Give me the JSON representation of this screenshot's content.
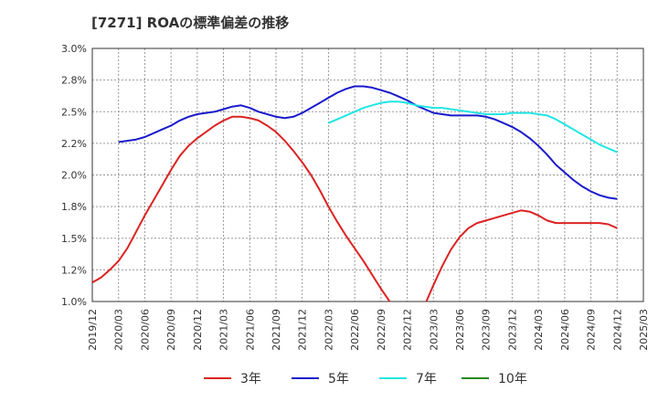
{
  "chart_data": {
    "type": "line",
    "title": "[7271]  ROAの標準偏差の推移",
    "xlabel": "",
    "ylabel": "",
    "ylim": [
      1.0,
      3.0
    ],
    "y_ticks": [
      "1.0%",
      "1.2%",
      "1.5%",
      "1.8%",
      "2.0%",
      "2.2%",
      "2.5%",
      "2.8%",
      "3.0%"
    ],
    "x_ticks": [
      "2019/12",
      "2020/03",
      "2020/06",
      "2020/09",
      "2020/12",
      "2021/03",
      "2021/06",
      "2021/09",
      "2021/12",
      "2022/03",
      "2022/06",
      "2022/09",
      "2022/12",
      "2023/03",
      "2023/06",
      "2023/09",
      "2023/12",
      "2024/03",
      "2024/06",
      "2024/09",
      "2024/12",
      "2025/03"
    ],
    "grid": true,
    "legend_position": "bottom",
    "series": [
      {
        "name": "3年",
        "color": "#dd2222",
        "values": [
          [
            "2019/12",
            1.15
          ],
          [
            "2020/01",
            1.19
          ],
          [
            "2020/02",
            1.25
          ],
          [
            "2020/03",
            1.32
          ],
          [
            "2020/04",
            1.42
          ],
          [
            "2020/05",
            1.55
          ],
          [
            "2020/06",
            1.68
          ],
          [
            "2020/07",
            1.8
          ],
          [
            "2020/08",
            1.92
          ],
          [
            "2020/09",
            2.04
          ],
          [
            "2020/10",
            2.15
          ],
          [
            "2020/11",
            2.23
          ],
          [
            "2020/12",
            2.29
          ],
          [
            "2021/01",
            2.34
          ],
          [
            "2021/02",
            2.39
          ],
          [
            "2021/03",
            2.43
          ],
          [
            "2021/04",
            2.46
          ],
          [
            "2021/05",
            2.46
          ],
          [
            "2021/06",
            2.45
          ],
          [
            "2021/07",
            2.43
          ],
          [
            "2021/08",
            2.39
          ],
          [
            "2021/09",
            2.34
          ],
          [
            "2021/10",
            2.27
          ],
          [
            "2021/11",
            2.19
          ],
          [
            "2021/12",
            2.1
          ],
          [
            "2022/01",
            2.0
          ],
          [
            "2022/02",
            1.88
          ],
          [
            "2022/03",
            1.75
          ],
          [
            "2022/04",
            1.63
          ],
          [
            "2022/05",
            1.52
          ],
          [
            "2022/06",
            1.42
          ],
          [
            "2022/07",
            1.32
          ],
          [
            "2022/08",
            1.21
          ],
          [
            "2022/09",
            1.1
          ],
          [
            "2022/10",
            1.0
          ],
          [
            "2022/11",
            0.92
          ],
          [
            "2022/12",
            0.88
          ],
          [
            "2023/01",
            0.89
          ],
          [
            "2023/02",
            0.97
          ],
          [
            "2023/03",
            1.13
          ],
          [
            "2023/04",
            1.28
          ],
          [
            "2023/05",
            1.41
          ],
          [
            "2023/06",
            1.51
          ],
          [
            "2023/07",
            1.58
          ],
          [
            "2023/08",
            1.62
          ],
          [
            "2023/09",
            1.64
          ],
          [
            "2023/10",
            1.66
          ],
          [
            "2023/11",
            1.68
          ],
          [
            "2023/12",
            1.7
          ],
          [
            "2024/01",
            1.72
          ],
          [
            "2024/02",
            1.71
          ],
          [
            "2024/03",
            1.68
          ],
          [
            "2024/04",
            1.64
          ],
          [
            "2024/05",
            1.62
          ],
          [
            "2024/06",
            1.62
          ],
          [
            "2024/07",
            1.62
          ],
          [
            "2024/08",
            1.62
          ],
          [
            "2024/09",
            1.62
          ],
          [
            "2024/10",
            1.62
          ],
          [
            "2024/11",
            1.61
          ],
          [
            "2024/12",
            1.58
          ]
        ]
      },
      {
        "name": "5年",
        "color": "#1a1acc",
        "values": [
          [
            "2020/03",
            2.26
          ],
          [
            "2020/04",
            2.27
          ],
          [
            "2020/05",
            2.28
          ],
          [
            "2020/06",
            2.3
          ],
          [
            "2020/07",
            2.33
          ],
          [
            "2020/08",
            2.36
          ],
          [
            "2020/09",
            2.39
          ],
          [
            "2020/10",
            2.43
          ],
          [
            "2020/11",
            2.46
          ],
          [
            "2020/12",
            2.48
          ],
          [
            "2021/01",
            2.49
          ],
          [
            "2021/02",
            2.5
          ],
          [
            "2021/03",
            2.52
          ],
          [
            "2021/04",
            2.54
          ],
          [
            "2021/05",
            2.55
          ],
          [
            "2021/06",
            2.53
          ],
          [
            "2021/07",
            2.5
          ],
          [
            "2021/08",
            2.48
          ],
          [
            "2021/09",
            2.46
          ],
          [
            "2021/10",
            2.45
          ],
          [
            "2021/11",
            2.46
          ],
          [
            "2021/12",
            2.49
          ],
          [
            "2022/01",
            2.53
          ],
          [
            "2022/02",
            2.57
          ],
          [
            "2022/03",
            2.61
          ],
          [
            "2022/04",
            2.65
          ],
          [
            "2022/05",
            2.68
          ],
          [
            "2022/06",
            2.7
          ],
          [
            "2022/07",
            2.7
          ],
          [
            "2022/08",
            2.69
          ],
          [
            "2022/09",
            2.67
          ],
          [
            "2022/10",
            2.65
          ],
          [
            "2022/11",
            2.62
          ],
          [
            "2022/12",
            2.59
          ],
          [
            "2023/01",
            2.55
          ],
          [
            "2023/02",
            2.52
          ],
          [
            "2023/03",
            2.49
          ],
          [
            "2023/04",
            2.48
          ],
          [
            "2023/05",
            2.47
          ],
          [
            "2023/06",
            2.47
          ],
          [
            "2023/07",
            2.47
          ],
          [
            "2023/08",
            2.47
          ],
          [
            "2023/09",
            2.46
          ],
          [
            "2023/10",
            2.44
          ],
          [
            "2023/11",
            2.41
          ],
          [
            "2023/12",
            2.38
          ],
          [
            "2024/01",
            2.34
          ],
          [
            "2024/02",
            2.29
          ],
          [
            "2024/03",
            2.23
          ],
          [
            "2024/04",
            2.16
          ],
          [
            "2024/05",
            2.08
          ],
          [
            "2024/06",
            2.02
          ],
          [
            "2024/07",
            1.96
          ],
          [
            "2024/08",
            1.91
          ],
          [
            "2024/09",
            1.87
          ],
          [
            "2024/10",
            1.84
          ],
          [
            "2024/11",
            1.82
          ],
          [
            "2024/12",
            1.81
          ]
        ]
      },
      {
        "name": "7年",
        "color": "#22e5e5",
        "values": [
          [
            "2022/03",
            2.41
          ],
          [
            "2022/04",
            2.44
          ],
          [
            "2022/05",
            2.47
          ],
          [
            "2022/06",
            2.5
          ],
          [
            "2022/07",
            2.53
          ],
          [
            "2022/08",
            2.55
          ],
          [
            "2022/09",
            2.57
          ],
          [
            "2022/10",
            2.58
          ],
          [
            "2022/11",
            2.58
          ],
          [
            "2022/12",
            2.57
          ],
          [
            "2023/01",
            2.55
          ],
          [
            "2023/02",
            2.54
          ],
          [
            "2023/03",
            2.53
          ],
          [
            "2023/04",
            2.53
          ],
          [
            "2023/05",
            2.52
          ],
          [
            "2023/06",
            2.51
          ],
          [
            "2023/07",
            2.5
          ],
          [
            "2023/08",
            2.49
          ],
          [
            "2023/09",
            2.48
          ],
          [
            "2023/10",
            2.48
          ],
          [
            "2023/11",
            2.48
          ],
          [
            "2023/12",
            2.49
          ],
          [
            "2024/01",
            2.49
          ],
          [
            "2024/02",
            2.49
          ],
          [
            "2024/03",
            2.48
          ],
          [
            "2024/04",
            2.47
          ],
          [
            "2024/05",
            2.44
          ],
          [
            "2024/06",
            2.4
          ],
          [
            "2024/07",
            2.36
          ],
          [
            "2024/08",
            2.32
          ],
          [
            "2024/09",
            2.28
          ],
          [
            "2024/10",
            2.24
          ],
          [
            "2024/11",
            2.21
          ],
          [
            "2024/12",
            2.18
          ]
        ]
      },
      {
        "name": "10年",
        "color": "#1f8a1f",
        "values": []
      }
    ]
  }
}
